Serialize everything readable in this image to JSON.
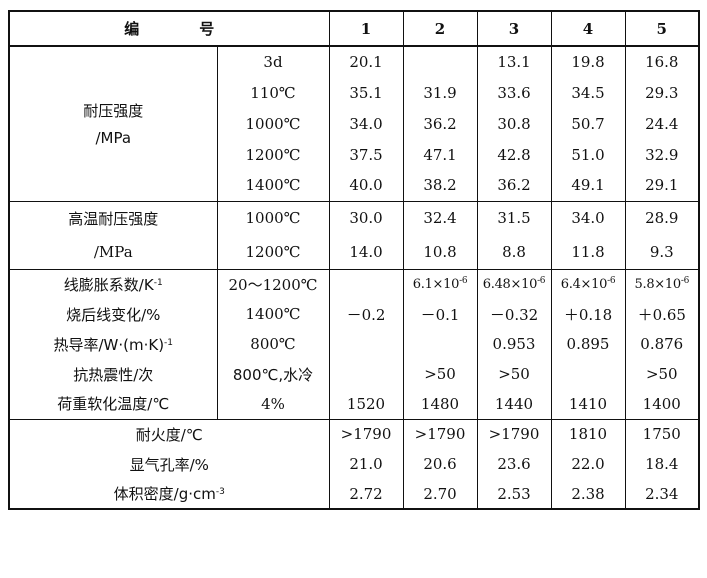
{
  "header": {
    "label": "编号",
    "cols": [
      "1",
      "2",
      "3",
      "4",
      "5"
    ]
  },
  "groups": [
    {
      "label_line1": "耐压强度",
      "label_line2": "/MPa",
      "rows": [
        {
          "cond": "3d",
          "vals": [
            "20.1",
            "",
            "13.1",
            "19.8",
            "16.8"
          ]
        },
        {
          "cond": "110℃",
          "vals": [
            "35.1",
            "31.9",
            "33.6",
            "34.5",
            "29.3"
          ]
        },
        {
          "cond": "1000℃",
          "vals": [
            "34.0",
            "36.2",
            "30.8",
            "50.7",
            "24.4"
          ]
        },
        {
          "cond": "1200℃",
          "vals": [
            "37.5",
            "47.1",
            "42.8",
            "51.0",
            "32.9"
          ]
        },
        {
          "cond": "1400℃",
          "vals": [
            "40.0",
            "38.2",
            "36.2",
            "49.1",
            "29.1"
          ]
        }
      ]
    },
    {
      "label_line1": "高温耐压强度",
      "label_line2": "/MPa",
      "rows": [
        {
          "cond": "1000℃",
          "vals": [
            "30.0",
            "32.4",
            "31.5",
            "34.0",
            "28.9"
          ]
        },
        {
          "cond": "1200℃",
          "vals": [
            "14.0",
            "10.8",
            "8.8",
            "11.8",
            "9.3"
          ]
        }
      ]
    }
  ],
  "props": [
    {
      "label": "线膨胀系数/K",
      "label_sup": "-1",
      "cond": "20～1200℃",
      "vals": [
        {
          "base": ""
        },
        {
          "base": "6.1×10",
          "sup": "-6"
        },
        {
          "base": "6.48×10",
          "sup": "-6"
        },
        {
          "base": "6.4×10",
          "sup": "-6"
        },
        {
          "base": "5.8×10",
          "sup": "-6"
        }
      ]
    },
    {
      "label": "烧后线变化/%",
      "label_sup": "",
      "cond": "1400℃",
      "vals": [
        {
          "base": "－0.2"
        },
        {
          "base": "－0.1"
        },
        {
          "base": "－0.32"
        },
        {
          "base": "＋0.18"
        },
        {
          "base": "＋0.65"
        }
      ]
    },
    {
      "label": "热导率/W·(m·K)",
      "label_sup": "-1",
      "cond": "800℃",
      "vals": [
        {
          "base": ""
        },
        {
          "base": ""
        },
        {
          "base": "0.953"
        },
        {
          "base": "0.895"
        },
        {
          "base": "0.876"
        }
      ]
    },
    {
      "label": "抗热震性/次",
      "label_sup": "",
      "cond": "800℃,水冷",
      "vals": [
        {
          "base": ""
        },
        {
          "base": ">50"
        },
        {
          "base": ">50"
        },
        {
          "base": ""
        },
        {
          "base": ">50"
        }
      ]
    },
    {
      "label": "荷重软化温度/℃",
      "label_sup": "",
      "cond": "4%",
      "vals": [
        {
          "base": "1520"
        },
        {
          "base": "1480"
        },
        {
          "base": "1440"
        },
        {
          "base": "1410"
        },
        {
          "base": "1400"
        }
      ]
    }
  ],
  "misc": [
    {
      "label": "耐火度/℃",
      "label_sup": "",
      "vals": [
        ">1790",
        ">1790",
        ">1790",
        "1810",
        "1750"
      ]
    },
    {
      "label": "显气孔率/%",
      "label_sup": "",
      "vals": [
        "21.0",
        "20.6",
        "23.6",
        "22.0",
        "18.4"
      ]
    },
    {
      "label": "体积密度/g·cm",
      "label_sup": "-3",
      "vals": [
        "2.72",
        "2.70",
        "2.53",
        "2.38",
        "2.34"
      ]
    }
  ]
}
